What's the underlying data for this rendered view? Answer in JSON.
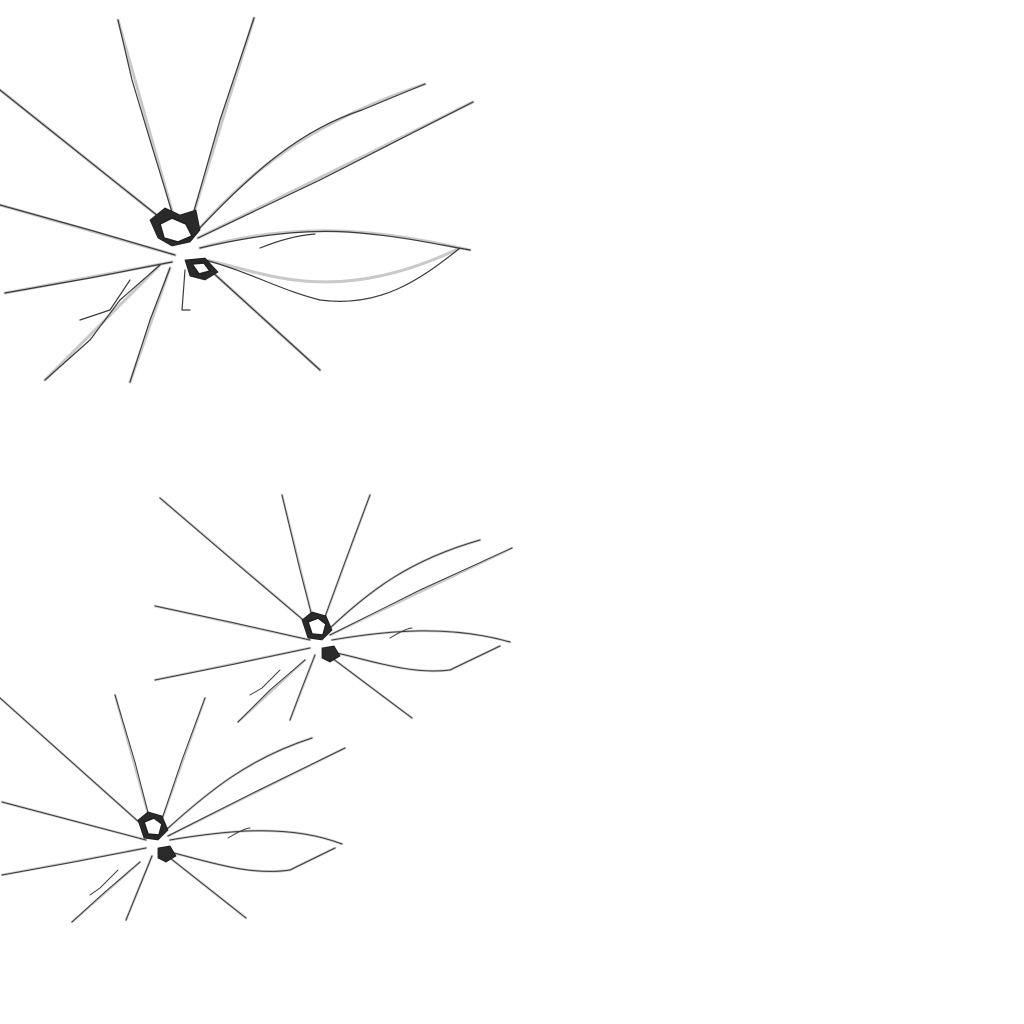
{
  "scene": {
    "background_color": "#ffffff",
    "items": [
      {
        "name": "cracked-glass-large",
        "icon": "broken-glass-icon",
        "color": "#2a2a2a"
      },
      {
        "name": "cracked-glass-medium",
        "icon": "broken-glass-icon",
        "color": "#2a2a2a"
      },
      {
        "name": "cracked-glass-small",
        "icon": "broken-glass-icon",
        "color": "#2a2a2a"
      }
    ]
  }
}
